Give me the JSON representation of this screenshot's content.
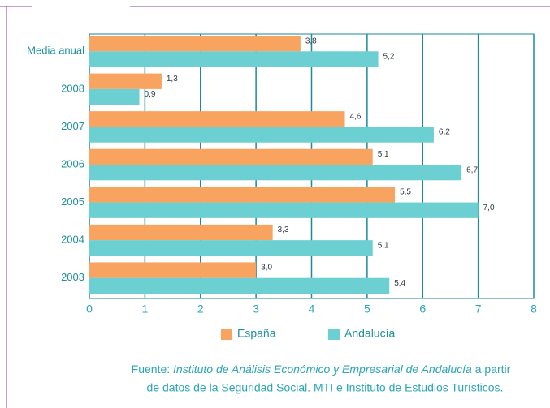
{
  "chart_data": {
    "type": "barh",
    "categories": [
      "Media anual",
      "2008",
      "2007",
      "2006",
      "2005",
      "2004",
      "2003"
    ],
    "series": [
      {
        "name": "España",
        "color": "#f8a35f",
        "values": [
          3.8,
          1.3,
          4.6,
          5.1,
          5.5,
          3.3,
          3.0
        ],
        "value_labels": [
          "3,8",
          "1,3",
          "4,6",
          "5,1",
          "5,5",
          "3,3",
          "3,0"
        ]
      },
      {
        "name": "Andalucía",
        "color": "#6ccfd1",
        "values": [
          5.2,
          0.9,
          6.2,
          6.7,
          7.0,
          5.1,
          5.4
        ],
        "value_labels": [
          "5,2",
          "0,9",
          "6,2",
          "6,7",
          "7,0",
          "5,1",
          "5,4"
        ]
      }
    ],
    "xlim": [
      0,
      8
    ],
    "xticks": [
      0,
      1,
      2,
      3,
      4,
      5,
      6,
      7,
      8
    ],
    "grid": true,
    "legend": "bottom",
    "source": {
      "prefix": "Fuente:",
      "institution": "Instituto de Análisis Económico y Empresarial de Andalucía",
      "line1_end": "a partir",
      "line2": "de datos de la Seguridad Social. MTI e Instituto de Estudios Turísticos."
    }
  }
}
